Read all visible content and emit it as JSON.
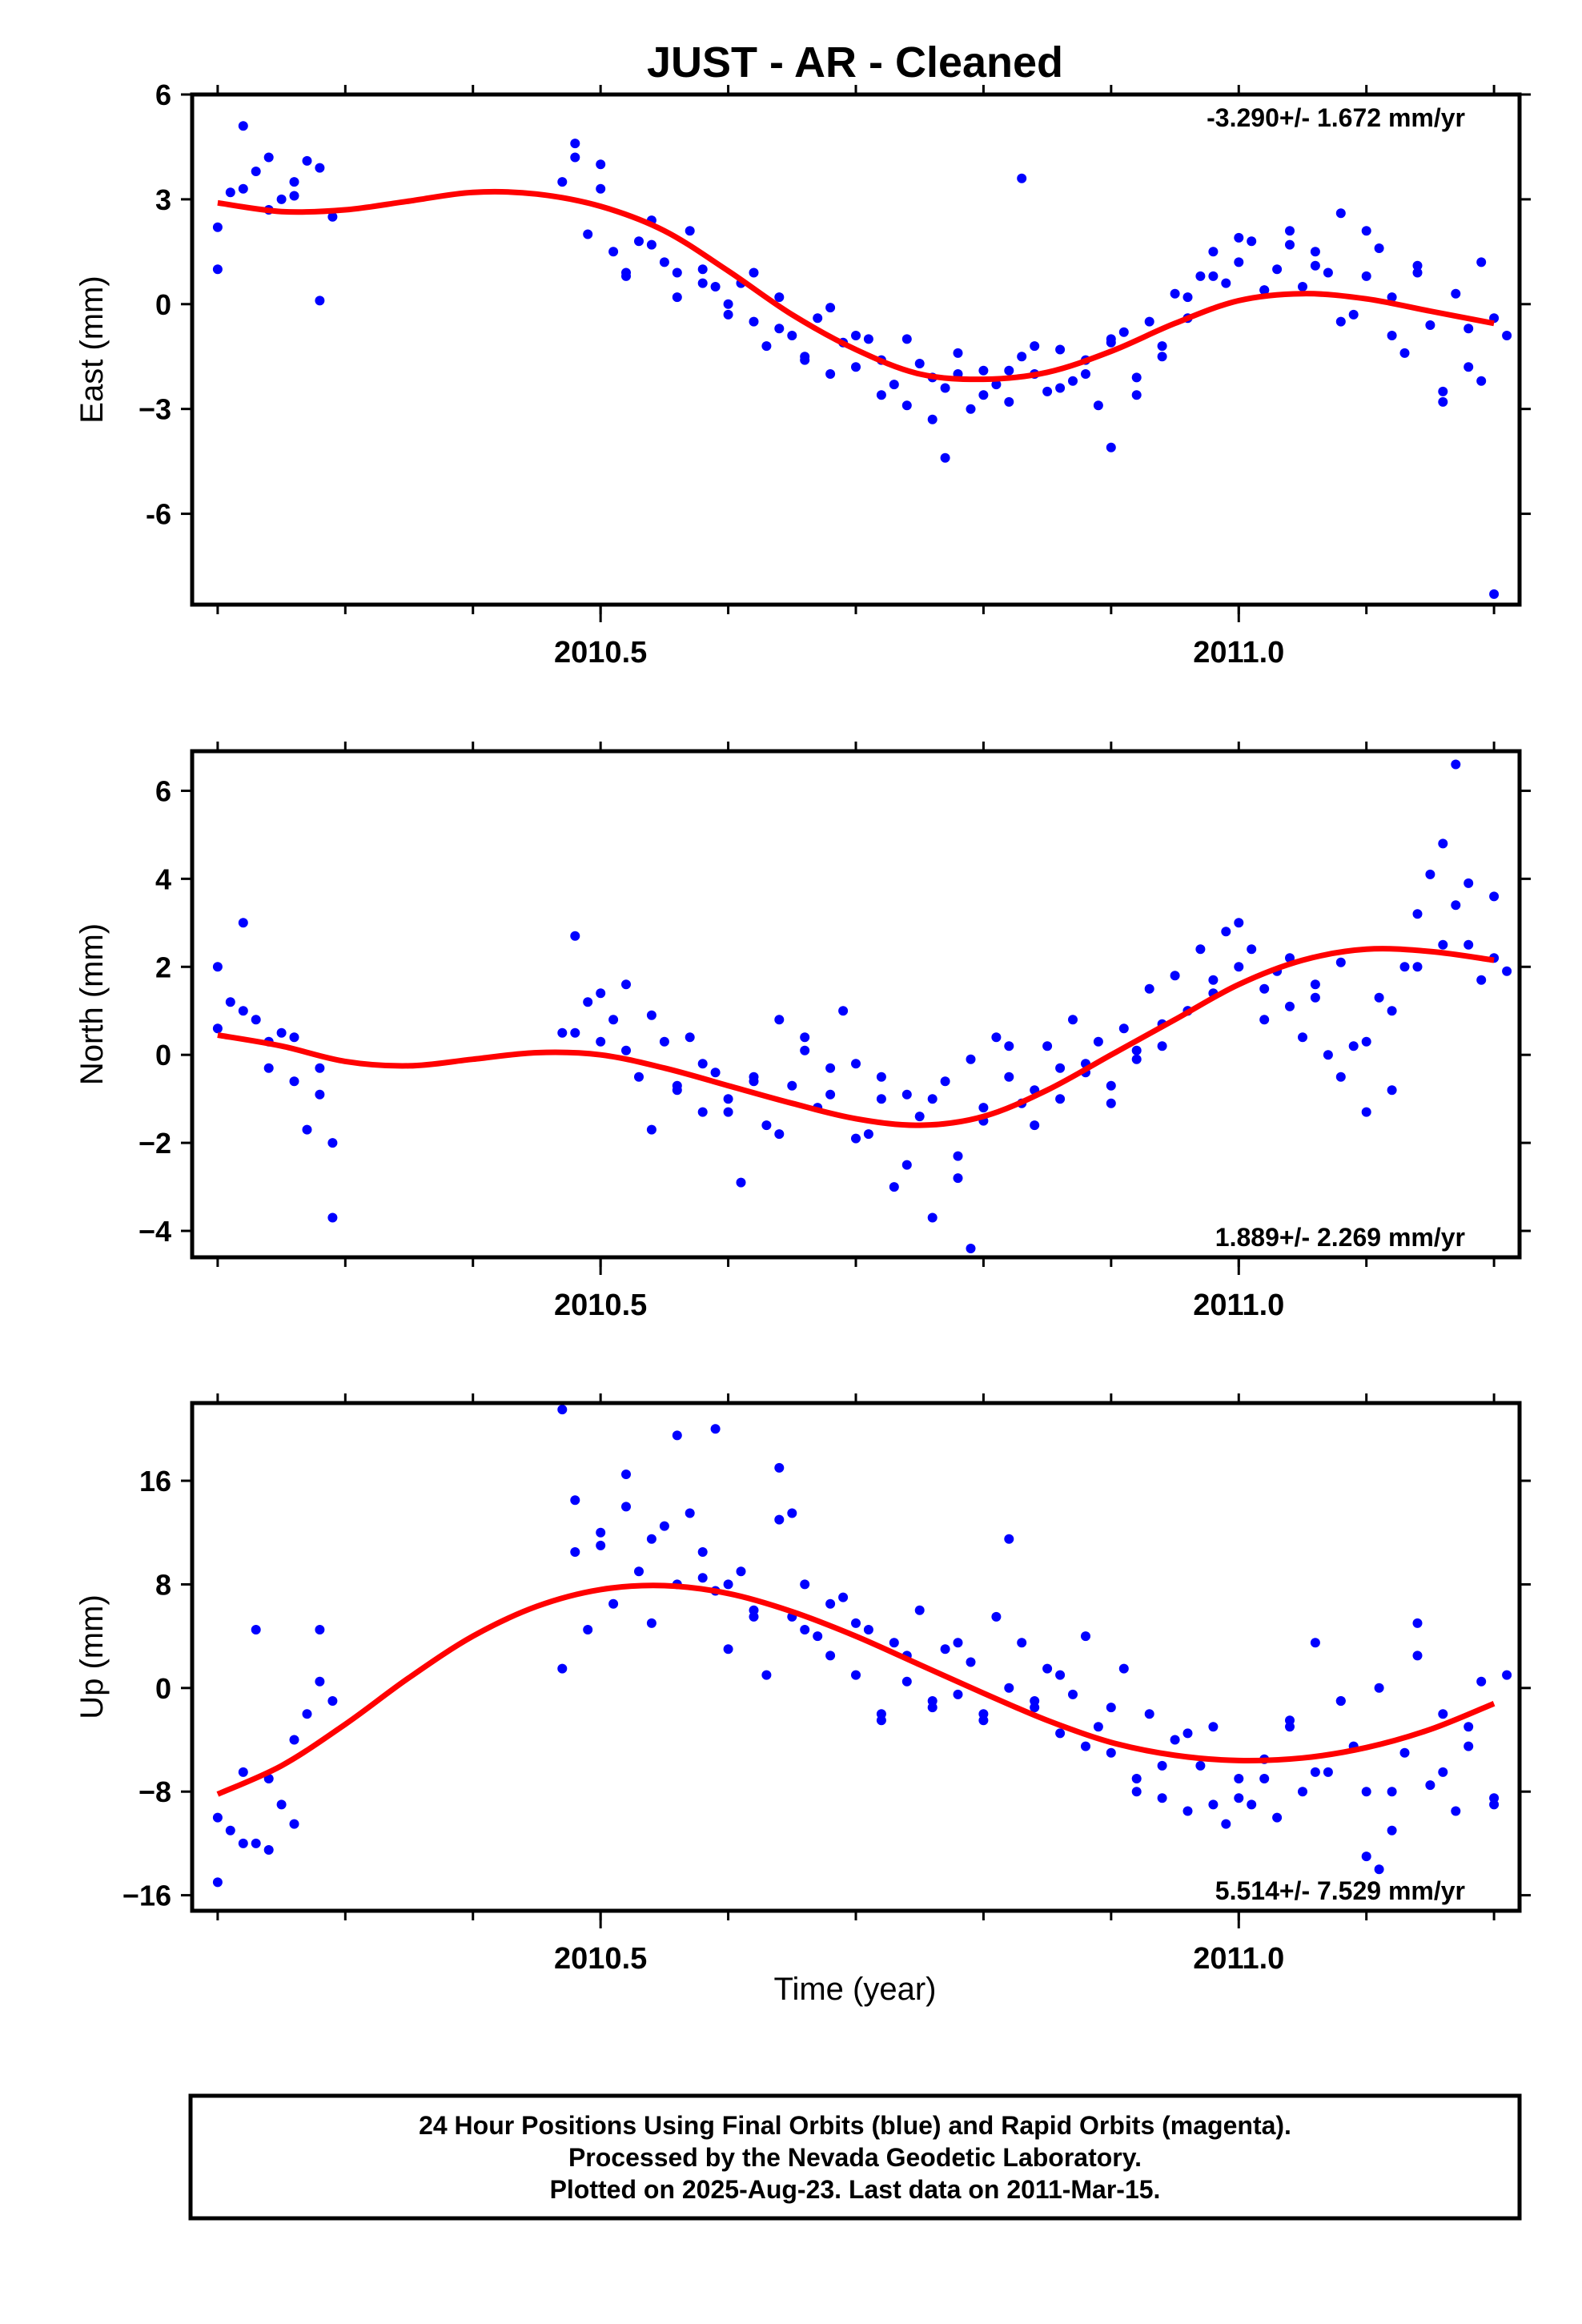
{
  "title": "JUST  - AR - Cleaned",
  "xlabel": "Time (year)",
  "footer": [
    "24 Hour Positions Using Final Orbits (blue) and Rapid Orbits (magenta).",
    "Processed by the Nevada Geodetic Laboratory.",
    "Plotted on 2025-Aug-23. Last data on 2011-Mar-15."
  ],
  "colors": {
    "points": "#0000ff",
    "fit": "#ff0000",
    "axes": "#000000"
  },
  "chart_data": [
    {
      "type": "scatter",
      "ylabel": "East (mm)",
      "rate_label": "-3.290+/- 1.672 mm/yr",
      "xlim": [
        2010.18,
        2011.22
      ],
      "ylim": [
        -8.6,
        6.0
      ],
      "x_ticks": [
        2010.5,
        2011.0
      ],
      "x_tick_labels": [
        "2010.5",
        "2011.0"
      ],
      "y_ticks": [
        6,
        3,
        0,
        -3,
        -6
      ],
      "y_tick_labels": [
        "6",
        "3",
        "0",
        "−3",
        "-6"
      ],
      "fit_curve": {
        "x": [
          2010.2,
          2010.25,
          2010.3,
          2010.35,
          2010.4,
          2010.45,
          2010.5,
          2010.55,
          2010.6,
          2010.65,
          2010.7,
          2010.75,
          2010.8,
          2010.85,
          2010.9,
          2010.95,
          2011.0,
          2011.05,
          2011.1,
          2011.15,
          2011.2
        ],
        "y": [
          2.9,
          2.65,
          2.7,
          2.95,
          3.2,
          3.15,
          2.8,
          2.1,
          0.95,
          -0.3,
          -1.3,
          -2.0,
          -2.15,
          -1.95,
          -1.35,
          -0.55,
          0.1,
          0.3,
          0.15,
          -0.2,
          -0.55
        ]
      },
      "points": {
        "x": [
          2010.2,
          2010.21,
          2010.22,
          2010.23,
          2010.24,
          2010.25,
          2010.26,
          2010.27,
          2010.28,
          2010.29,
          2010.2,
          2010.22,
          2010.24,
          2010.26,
          2010.28,
          2010.47,
          2010.48,
          2010.49,
          2010.5,
          2010.51,
          2010.52,
          2010.53,
          2010.54,
          2010.55,
          2010.56,
          2010.57,
          2010.58,
          2010.59,
          2010.6,
          2010.61,
          2010.62,
          2010.63,
          2010.64,
          2010.65,
          2010.66,
          2010.67,
          2010.68,
          2010.69,
          2010.7,
          2010.71,
          2010.72,
          2010.73,
          2010.74,
          2010.75,
          2010.76,
          2010.77,
          2010.78,
          2010.79,
          2010.8,
          2010.81,
          2010.82,
          2010.83,
          2010.84,
          2010.85,
          2010.86,
          2010.87,
          2010.88,
          2010.89,
          2010.9,
          2010.91,
          2010.92,
          2010.93,
          2010.94,
          2010.95,
          2010.96,
          2010.97,
          2010.98,
          2010.99,
          2011.0,
          2011.01,
          2011.02,
          2011.03,
          2011.04,
          2011.05,
          2011.06,
          2011.07,
          2011.08,
          2011.09,
          2011.1,
          2011.11,
          2011.12,
          2011.13,
          2011.14,
          2011.15,
          2011.16,
          2011.17,
          2011.18,
          2011.19,
          2011.2,
          2011.21,
          2010.48,
          2010.5,
          2010.52,
          2010.54,
          2010.56,
          2010.58,
          2010.6,
          2010.62,
          2010.64,
          2010.66,
          2010.68,
          2010.7,
          2010.72,
          2010.74,
          2010.76,
          2010.78,
          2010.8,
          2010.82,
          2010.84,
          2010.86,
          2010.88,
          2010.9,
          2010.92,
          2010.94,
          2010.96,
          2010.98,
          2011.0,
          2011.02,
          2011.04,
          2011.06,
          2011.08,
          2011.1,
          2011.12,
          2011.14,
          2011.16,
          2011.18,
          2011.2,
          2011.19,
          2010.83,
          2010.9,
          2010.77
        ],
        "y": [
          1.0,
          3.2,
          5.1,
          3.8,
          4.2,
          3.0,
          3.5,
          4.1,
          3.9,
          2.5,
          2.2,
          3.3,
          2.7,
          3.1,
          0.1,
          3.5,
          4.6,
          2.0,
          3.3,
          1.5,
          0.8,
          1.8,
          2.4,
          1.2,
          0.9,
          2.1,
          1.0,
          0.5,
          -0.3,
          0.6,
          -0.5,
          -1.2,
          0.2,
          -0.9,
          -1.5,
          -0.4,
          -2.0,
          -1.1,
          -1.8,
          -1.0,
          -1.6,
          -2.3,
          -2.9,
          -1.7,
          -3.3,
          -2.4,
          -2.0,
          -3.0,
          -1.9,
          -2.3,
          -2.8,
          -1.5,
          -2.0,
          -2.5,
          -1.3,
          -2.2,
          -1.6,
          -2.9,
          -1.1,
          -0.8,
          -2.1,
          -0.5,
          -1.2,
          0.3,
          -0.4,
          0.8,
          1.5,
          0.6,
          1.2,
          1.8,
          0.4,
          1.0,
          2.1,
          0.5,
          1.5,
          0.9,
          2.6,
          -0.3,
          0.8,
          1.6,
          0.2,
          -1.4,
          1.1,
          -0.6,
          -2.5,
          0.3,
          -1.8,
          -2.2,
          -0.4,
          -0.9,
          4.2,
          4.0,
          0.9,
          1.7,
          0.2,
          0.6,
          0.0,
          0.9,
          -0.7,
          -1.6,
          -0.1,
          -0.9,
          -2.6,
          -1.0,
          -2.1,
          -1.4,
          -2.6,
          -1.9,
          -1.2,
          -2.4,
          -2.0,
          -1.0,
          -2.6,
          -1.5,
          0.2,
          0.8,
          1.9,
          0.4,
          1.7,
          1.1,
          -0.5,
          2.1,
          -0.9,
          0.9,
          -2.8,
          -0.7,
          -8.3,
          1.2,
          3.6,
          -4.1,
          -4.4
        ]
      }
    },
    {
      "type": "scatter",
      "ylabel": "North (mm)",
      "rate_label": "1.889+/- 2.269 mm/yr",
      "xlim": [
        2010.18,
        2011.22
      ],
      "ylim": [
        -4.6,
        6.9
      ],
      "x_ticks": [
        2010.5,
        2011.0
      ],
      "x_tick_labels": [
        "2010.5",
        "2011.0"
      ],
      "y_ticks": [
        6,
        4,
        2,
        0,
        -2,
        -4
      ],
      "y_tick_labels": [
        "6",
        "4",
        "2",
        "0",
        "−2",
        "−4"
      ],
      "fit_curve": {
        "x": [
          2010.2,
          2010.25,
          2010.3,
          2010.35,
          2010.4,
          2010.45,
          2010.5,
          2010.55,
          2010.6,
          2010.65,
          2010.7,
          2010.75,
          2010.8,
          2010.85,
          2010.9,
          2010.95,
          2011.0,
          2011.05,
          2011.1,
          2011.15,
          2011.2
        ],
        "y": [
          0.45,
          0.2,
          -0.15,
          -0.25,
          -0.1,
          0.05,
          0.0,
          -0.3,
          -0.7,
          -1.1,
          -1.45,
          -1.6,
          -1.4,
          -0.8,
          0.0,
          0.8,
          1.6,
          2.15,
          2.4,
          2.35,
          2.15
        ]
      },
      "points": {
        "x": [
          2010.2,
          2010.21,
          2010.22,
          2010.23,
          2010.24,
          2010.25,
          2010.26,
          2010.27,
          2010.28,
          2010.29,
          2010.2,
          2010.22,
          2010.24,
          2010.26,
          2010.28,
          2010.47,
          2010.48,
          2010.49,
          2010.5,
          2010.51,
          2010.52,
          2010.53,
          2010.54,
          2010.55,
          2010.56,
          2010.57,
          2010.58,
          2010.59,
          2010.6,
          2010.61,
          2010.62,
          2010.63,
          2010.64,
          2010.65,
          2010.66,
          2010.67,
          2010.68,
          2010.69,
          2010.7,
          2010.71,
          2010.72,
          2010.73,
          2010.74,
          2010.75,
          2010.76,
          2010.77,
          2010.78,
          2010.79,
          2010.8,
          2010.81,
          2010.82,
          2010.83,
          2010.84,
          2010.85,
          2010.86,
          2010.87,
          2010.88,
          2010.89,
          2010.9,
          2010.91,
          2010.92,
          2010.93,
          2010.94,
          2010.95,
          2010.96,
          2010.97,
          2010.98,
          2010.99,
          2011.0,
          2011.01,
          2011.02,
          2011.03,
          2011.04,
          2011.05,
          2011.06,
          2011.07,
          2011.08,
          2011.09,
          2011.1,
          2011.11,
          2011.12,
          2011.13,
          2011.14,
          2011.15,
          2011.16,
          2011.17,
          2011.18,
          2011.19,
          2011.2,
          2011.21,
          2010.48,
          2010.5,
          2010.52,
          2010.54,
          2010.56,
          2010.58,
          2010.6,
          2010.62,
          2010.64,
          2010.66,
          2010.68,
          2010.7,
          2010.72,
          2010.74,
          2010.76,
          2010.78,
          2010.8,
          2010.82,
          2010.84,
          2010.86,
          2010.88,
          2010.9,
          2010.92,
          2010.94,
          2010.96,
          2010.98,
          2011.0,
          2011.02,
          2011.04,
          2011.06,
          2011.08,
          2011.1,
          2011.12,
          2011.14,
          2011.16,
          2011.18,
          2011.2,
          2011.17,
          2010.29,
          2010.79
        ],
        "y": [
          2.0,
          1.2,
          3.0,
          0.8,
          -0.3,
          0.5,
          -0.6,
          -1.7,
          -0.9,
          -2.0,
          0.6,
          1.0,
          0.3,
          0.4,
          -0.3,
          0.5,
          2.7,
          1.2,
          0.3,
          0.8,
          1.6,
          -0.5,
          -1.7,
          0.3,
          -0.8,
          0.4,
          -1.3,
          -0.4,
          -1.0,
          -2.9,
          -0.5,
          -1.6,
          0.8,
          -0.7,
          0.1,
          -1.2,
          -0.3,
          1.0,
          -0.2,
          -1.8,
          -1.0,
          -3.0,
          -0.9,
          -1.4,
          -3.7,
          -0.6,
          -2.3,
          -0.1,
          -1.5,
          0.4,
          -0.5,
          -1.1,
          -0.8,
          0.2,
          -1.0,
          0.8,
          -0.4,
          0.3,
          -1.1,
          0.6,
          0.1,
          1.5,
          0.7,
          1.8,
          1.0,
          2.4,
          1.4,
          2.8,
          2.0,
          2.4,
          1.5,
          1.9,
          1.1,
          0.4,
          1.6,
          0.0,
          2.1,
          0.2,
          -1.3,
          1.3,
          -0.8,
          2.0,
          3.2,
          4.1,
          4.8,
          3.4,
          2.5,
          1.7,
          3.6,
          1.9,
          0.5,
          1.4,
          0.1,
          0.9,
          -0.7,
          -0.2,
          -1.3,
          -0.6,
          -1.8,
          0.4,
          -0.9,
          -1.9,
          -0.5,
          -2.5,
          -1.0,
          -2.8,
          -1.2,
          0.2,
          -1.6,
          -0.3,
          -0.2,
          -0.7,
          -0.1,
          0.2,
          1.0,
          1.7,
          3.0,
          0.8,
          2.2,
          1.3,
          -0.5,
          0.3,
          1.0,
          2.0,
          2.5,
          3.9,
          2.2,
          6.6,
          -3.7,
          -4.4
        ]
      }
    },
    {
      "type": "scatter",
      "ylabel": "Up (mm)",
      "rate_label": "5.514+/- 7.529 mm/yr",
      "xlim": [
        2010.18,
        2011.22
      ],
      "ylim": [
        -17.2,
        22.0
      ],
      "x_ticks": [
        2010.5,
        2011.0
      ],
      "x_tick_labels": [
        "2010.5",
        "2011.0"
      ],
      "y_ticks": [
        16,
        8,
        0,
        -8,
        -16
      ],
      "y_tick_labels": [
        "16",
        "8",
        "0",
        "−8",
        "−16"
      ],
      "fit_curve": {
        "x": [
          2010.2,
          2010.25,
          2010.3,
          2010.35,
          2010.4,
          2010.45,
          2010.5,
          2010.55,
          2010.6,
          2010.65,
          2010.7,
          2010.75,
          2010.8,
          2010.85,
          2010.9,
          2010.95,
          2011.0,
          2011.05,
          2011.1,
          2011.15,
          2011.2
        ],
        "y": [
          -8.2,
          -6.0,
          -2.8,
          0.8,
          4.0,
          6.3,
          7.6,
          7.9,
          7.3,
          5.9,
          4.0,
          1.8,
          -0.4,
          -2.5,
          -4.2,
          -5.2,
          -5.6,
          -5.4,
          -4.6,
          -3.2,
          -1.2
        ]
      },
      "points": {
        "x": [
          2010.2,
          2010.21,
          2010.22,
          2010.23,
          2010.24,
          2010.25,
          2010.26,
          2010.27,
          2010.28,
          2010.29,
          2010.2,
          2010.22,
          2010.24,
          2010.26,
          2010.28,
          2010.47,
          2010.48,
          2010.49,
          2010.5,
          2010.51,
          2010.52,
          2010.53,
          2010.54,
          2010.55,
          2010.56,
          2010.57,
          2010.58,
          2010.59,
          2010.6,
          2010.61,
          2010.62,
          2010.63,
          2010.64,
          2010.65,
          2010.66,
          2010.67,
          2010.68,
          2010.69,
          2010.7,
          2010.71,
          2010.72,
          2010.73,
          2010.74,
          2010.75,
          2010.76,
          2010.77,
          2010.78,
          2010.79,
          2010.8,
          2010.81,
          2010.82,
          2010.83,
          2010.84,
          2010.85,
          2010.86,
          2010.87,
          2010.88,
          2010.89,
          2010.9,
          2010.91,
          2010.92,
          2010.93,
          2010.94,
          2010.95,
          2010.96,
          2010.97,
          2010.98,
          2010.99,
          2011.0,
          2011.01,
          2011.02,
          2011.03,
          2011.04,
          2011.05,
          2011.06,
          2011.07,
          2011.08,
          2011.09,
          2011.1,
          2011.11,
          2011.12,
          2011.13,
          2011.14,
          2011.15,
          2011.16,
          2011.17,
          2011.18,
          2011.19,
          2011.2,
          2011.21,
          2010.48,
          2010.5,
          2010.52,
          2010.54,
          2010.56,
          2010.58,
          2010.6,
          2010.62,
          2010.64,
          2010.66,
          2010.68,
          2010.7,
          2010.72,
          2010.74,
          2010.76,
          2010.78,
          2010.8,
          2010.82,
          2010.84,
          2010.86,
          2010.88,
          2010.9,
          2010.92,
          2010.94,
          2010.96,
          2010.98,
          2011.0,
          2011.02,
          2011.04,
          2011.06,
          2011.08,
          2011.1,
          2011.12,
          2011.14,
          2011.16,
          2011.18,
          2011.2,
          2010.47,
          2010.59,
          2010.65,
          2010.23,
          2011.11
        ],
        "y": [
          -15.0,
          -11.0,
          -6.5,
          4.5,
          -12.5,
          -9.0,
          -4.0,
          -2.0,
          4.5,
          -1.0,
          -10.0,
          -12.0,
          -7.0,
          -10.5,
          0.5,
          1.5,
          10.5,
          4.5,
          12.0,
          6.5,
          14.0,
          9.0,
          5.0,
          12.5,
          8.0,
          13.5,
          10.5,
          7.5,
          3.0,
          9.0,
          6.0,
          1.0,
          13.0,
          5.5,
          8.0,
          4.0,
          2.5,
          7.0,
          1.0,
          4.5,
          -2.0,
          3.5,
          0.5,
          6.0,
          -1.5,
          3.0,
          -0.5,
          2.0,
          -2.5,
          5.5,
          0.0,
          3.5,
          -1.0,
          1.5,
          -3.5,
          -0.5,
          4.0,
          -3.0,
          -5.0,
          1.5,
          -7.0,
          -2.0,
          -8.5,
          -4.0,
          -9.5,
          -6.0,
          -3.0,
          -10.5,
          -7.0,
          -9.0,
          -5.5,
          -10.0,
          -3.0,
          -8.0,
          3.5,
          -6.5,
          -1.0,
          -4.5,
          -8.0,
          0.0,
          -11.0,
          -5.0,
          2.5,
          -7.5,
          -2.0,
          -9.5,
          -3.0,
          0.5,
          -8.5,
          1.0,
          14.5,
          11.0,
          16.5,
          11.5,
          19.5,
          8.5,
          8.0,
          5.5,
          17.0,
          4.5,
          6.5,
          5.0,
          -2.5,
          2.5,
          -1.0,
          3.5,
          -2.0,
          11.5,
          -1.5,
          1.0,
          -4.5,
          -1.5,
          -8.0,
          -6.0,
          -3.5,
          -9.0,
          -8.5,
          -7.0,
          -2.5,
          -6.5,
          -1.0,
          -13.0,
          -8.0,
          5.0,
          -6.5,
          -4.5,
          -9.0,
          21.5,
          20.0,
          13.5,
          -12.0,
          -14.0
        ]
      }
    }
  ]
}
